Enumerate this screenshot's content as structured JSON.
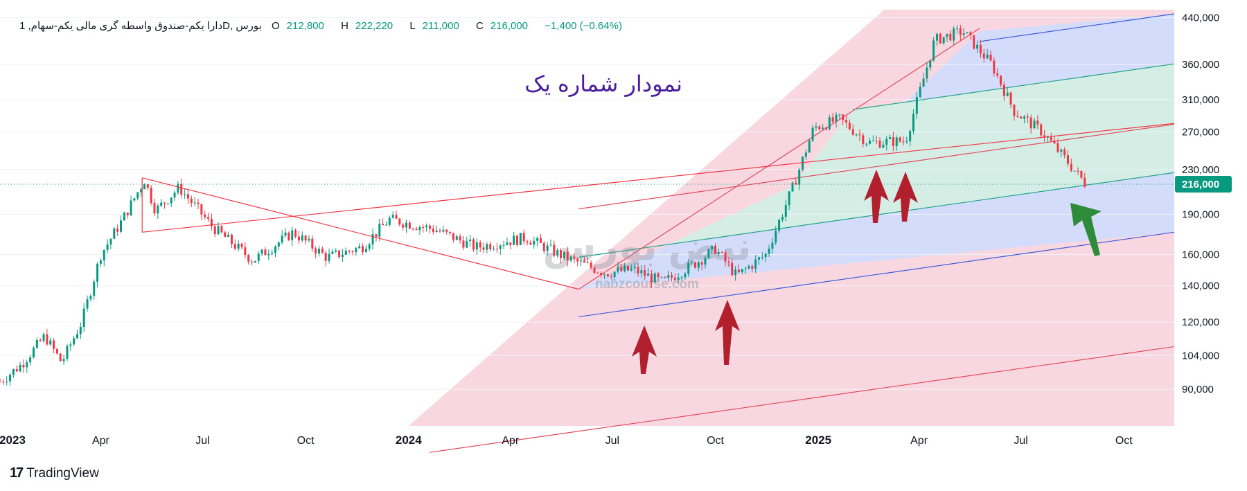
{
  "header": {
    "symbol": "دارا یکم-صندوق واسطه گری مالی یکم-سهام, 1D, بورس",
    "open_label": "O",
    "open": "212,800",
    "high_label": "H",
    "high": "222,220",
    "low_label": "L",
    "low": "211,000",
    "close_label": "C",
    "close": "216,000",
    "change": "−1,400 (−0.64%)"
  },
  "annotation_text": "نمودار شماره یک",
  "watermark": {
    "text": "نبض بورس",
    "url_text": "nabzcourse.com"
  },
  "brand": {
    "name": "TradingView"
  },
  "current_price_tag": "216,000",
  "colors": {
    "up": "#089981",
    "down": "#f23645",
    "channel_blue": "#d3dcfb",
    "channel_green": "#d4ede5",
    "channel_pink": "#f8d0dc",
    "trendline": "#f23645",
    "arrow_red": "#b2202e",
    "arrow_green": "#2e8b3a",
    "price_tag": "#089981",
    "annotation": "#4b1e9e"
  },
  "chart_data": {
    "type": "candlestick",
    "title": "",
    "y_scale": "log",
    "y_ticks": [
      "440,000",
      "360,000",
      "310,000",
      "270,000",
      "230,000",
      "216,000",
      "190,000",
      "160,000",
      "140,000",
      "120,000",
      "104,000",
      "90,000"
    ],
    "x_ticks": [
      "2023",
      "Apr",
      "Jul",
      "Oct",
      "2024",
      "Apr",
      "Jul",
      "Oct",
      "2025",
      "Apr",
      "Jul",
      "Oct"
    ],
    "x_range": [
      "2023-01-01",
      "2025-11-15"
    ],
    "y_range": [
      77000,
      455000
    ],
    "last_close": 216000,
    "price_path": [
      [
        "2023-01-01",
        93000
      ],
      [
        "2023-01-20",
        100000
      ],
      [
        "2023-02-10",
        113000
      ],
      [
        "2023-02-25",
        101000
      ],
      [
        "2023-03-15",
        120000
      ],
      [
        "2023-04-01",
        160000
      ],
      [
        "2023-04-20",
        185000
      ],
      [
        "2023-05-10",
        220000
      ],
      [
        "2023-05-20",
        193000
      ],
      [
        "2023-06-10",
        213000
      ],
      [
        "2023-07-10",
        180000
      ],
      [
        "2023-08-15",
        156000
      ],
      [
        "2023-09-20",
        176000
      ],
      [
        "2023-10-20",
        158000
      ],
      [
        "2023-11-20",
        165000
      ],
      [
        "2023-12-15",
        186000
      ],
      [
        "2024-01-25",
        178000
      ],
      [
        "2024-03-01",
        165000
      ],
      [
        "2024-04-15",
        172000
      ],
      [
        "2024-05-20",
        158000
      ],
      [
        "2024-06-25",
        148000
      ],
      [
        "2024-07-20",
        150000
      ],
      [
        "2024-08-15",
        142000
      ],
      [
        "2024-09-15",
        155000
      ],
      [
        "2024-10-01",
        164000
      ],
      [
        "2024-10-20",
        146000
      ],
      [
        "2024-11-15",
        160000
      ],
      [
        "2024-12-10",
        215000
      ],
      [
        "2024-12-28",
        275000
      ],
      [
        "2025-01-20",
        285000
      ],
      [
        "2025-02-15",
        258000
      ],
      [
        "2025-03-20",
        260000
      ],
      [
        "2025-04-15",
        400000
      ],
      [
        "2025-05-10",
        415000
      ],
      [
        "2025-06-05",
        360000
      ],
      [
        "2025-06-25",
        295000
      ],
      [
        "2025-07-20",
        270000
      ],
      [
        "2025-08-10",
        240000
      ],
      [
        "2025-08-28",
        216000
      ]
    ],
    "pitchfork": {
      "pivot_low": [
        "2024-06-01",
        138000
      ],
      "upper_tine": [
        [
          "2024-06-01",
          138000
        ],
        [
          "2025-11-15",
          198000
        ]
      ],
      "median": [
        [
          "2024-06-01",
          160000
        ],
        [
          "2025-11-15",
          228000
        ]
      ],
      "lines_prices_at_end": [
        447000,
        361000,
        279000,
        227000,
        176000,
        108000
      ]
    },
    "trendlines": [
      {
        "from": [
          "2023-05-08",
          222000
        ],
        "to": [
          "2024-06-01",
          138000
        ]
      },
      {
        "from": [
          "2023-05-08",
          176000
        ],
        "to": [
          "2025-11-15",
          280000
        ]
      }
    ],
    "arrows": [
      {
        "date": "2024-08-10",
        "dir": "up",
        "color": "red"
      },
      {
        "date": "2024-10-20",
        "dir": "up",
        "color": "red"
      },
      {
        "date": "2025-02-15",
        "dir": "up",
        "color": "red"
      },
      {
        "date": "2025-03-10",
        "dir": "up",
        "color": "red"
      },
      {
        "date": "2025-09-05",
        "dir": "up-left",
        "color": "green"
      }
    ]
  }
}
